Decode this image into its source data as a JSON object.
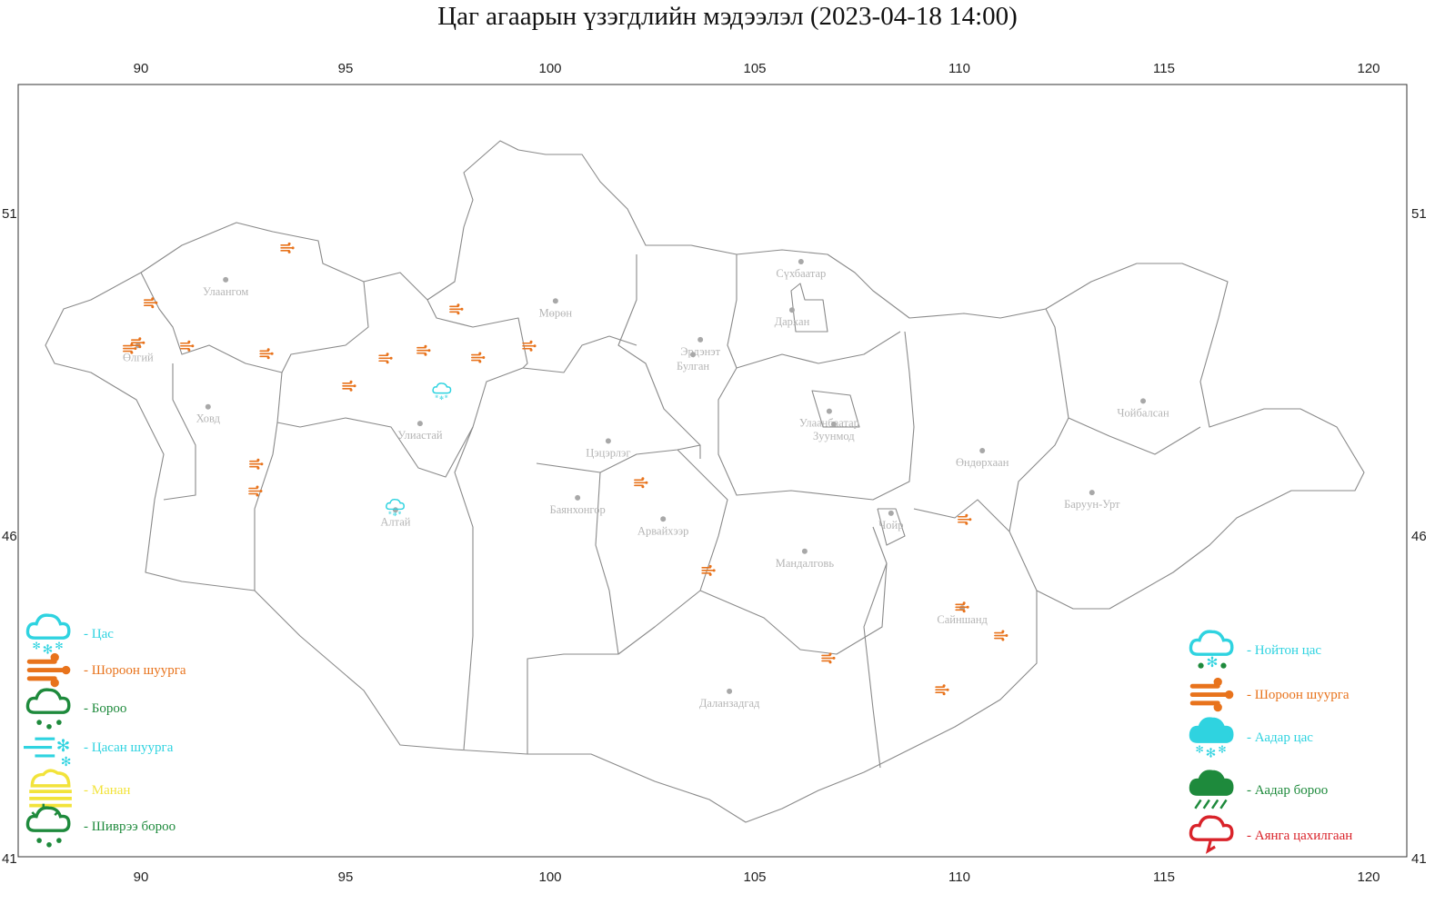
{
  "title": "Цаг агаарын үзэгдлийн мэдээлэл (2023-04-18 14:00)",
  "axes": {
    "lon_ticks": [
      90,
      95,
      100,
      105,
      110,
      115,
      120
    ],
    "lat_ticks": [
      51,
      46,
      41
    ],
    "lon_range": [
      87,
      121
    ],
    "lat_range": [
      41,
      53
    ]
  },
  "colors": {
    "dust": "#e8731c",
    "snow": "#2fd3e0",
    "rain": "#1e8a3c",
    "fog": "#f2e33a",
    "thunder": "#d9232a",
    "border": "#8a8a8a",
    "city": "#b5b5b5"
  },
  "cities": [
    {
      "name": "Улаангом",
      "lon": 92.07,
      "lat": 49.96
    },
    {
      "name": "Өлгий",
      "lon": 89.93,
      "lat": 48.94
    },
    {
      "name": "Ховд",
      "lon": 91.64,
      "lat": 47.99
    },
    {
      "name": "Улиастай",
      "lon": 96.82,
      "lat": 47.73
    },
    {
      "name": "Алтай",
      "lon": 96.22,
      "lat": 46.39
    },
    {
      "name": "Мөрөн",
      "lon": 100.13,
      "lat": 49.63
    },
    {
      "name": "Цэцэрлэг",
      "lon": 101.42,
      "lat": 47.46
    },
    {
      "name": "Баянхонгор",
      "lon": 100.67,
      "lat": 46.58
    },
    {
      "name": "Арвайхээр",
      "lon": 102.76,
      "lat": 46.25
    },
    {
      "name": "Эрдэнэт",
      "lon": 103.67,
      "lat": 49.03
    },
    {
      "name": "Булган",
      "lon": 103.49,
      "lat": 48.8
    },
    {
      "name": "Сүхбаатар",
      "lon": 106.13,
      "lat": 50.24
    },
    {
      "name": "Дархан",
      "lon": 105.91,
      "lat": 49.49
    },
    {
      "name": "Улаанбаатар",
      "lon": 106.82,
      "lat": 47.92
    },
    {
      "name": "Зуунмод",
      "lon": 106.93,
      "lat": 47.72
    },
    {
      "name": "Мандалговь",
      "lon": 106.22,
      "lat": 45.75
    },
    {
      "name": "Даланзадгад",
      "lon": 104.38,
      "lat": 43.58
    },
    {
      "name": "Чойр",
      "lon": 108.33,
      "lat": 46.34
    },
    {
      "name": "Өндөрхаан",
      "lon": 110.56,
      "lat": 47.31
    },
    {
      "name": "Сайншанд",
      "lon": 110.07,
      "lat": 44.87
    },
    {
      "name": "Баруун-Урт",
      "lon": 113.24,
      "lat": 46.66
    },
    {
      "name": "Чойбалсан",
      "lon": 114.49,
      "lat": 48.08
    }
  ],
  "observations": [
    {
      "type": "dust",
      "lon": 93.58,
      "lat": 50.46
    },
    {
      "type": "dust",
      "lon": 90.24,
      "lat": 49.61
    },
    {
      "type": "dust",
      "lon": 89.73,
      "lat": 48.9
    },
    {
      "type": "dust",
      "lon": 89.93,
      "lat": 48.99
    },
    {
      "type": "dust",
      "lon": 91.13,
      "lat": 48.94
    },
    {
      "type": "dust",
      "lon": 93.07,
      "lat": 48.82
    },
    {
      "type": "dust",
      "lon": 95.09,
      "lat": 48.32
    },
    {
      "type": "dust",
      "lon": 95.98,
      "lat": 48.75
    },
    {
      "type": "dust",
      "lon": 96.91,
      "lat": 48.87
    },
    {
      "type": "dust",
      "lon": 97.71,
      "lat": 49.51
    },
    {
      "type": "dust",
      "lon": 98.24,
      "lat": 48.76
    },
    {
      "type": "dust",
      "lon": 99.49,
      "lat": 48.94
    },
    {
      "type": "dust",
      "lon": 92.82,
      "lat": 47.11
    },
    {
      "type": "dust",
      "lon": 92.8,
      "lat": 46.69
    },
    {
      "type": "dust",
      "lon": 102.22,
      "lat": 46.82
    },
    {
      "type": "dust",
      "lon": 103.87,
      "lat": 45.46
    },
    {
      "type": "dust",
      "lon": 106.8,
      "lat": 44.1
    },
    {
      "type": "dust",
      "lon": 110.13,
      "lat": 46.25
    },
    {
      "type": "dust",
      "lon": 110.07,
      "lat": 44.89
    },
    {
      "type": "dust",
      "lon": 111.02,
      "lat": 44.45
    },
    {
      "type": "dust",
      "lon": 109.58,
      "lat": 43.61
    },
    {
      "type": "snow",
      "lon": 97.36,
      "lat": 48.24
    },
    {
      "type": "snow",
      "lon": 96.22,
      "lat": 46.44
    }
  ],
  "legend_left": [
    {
      "icon": "snow",
      "label": "- Цас",
      "color": "#2fd3e0"
    },
    {
      "icon": "dust",
      "label": "- Шороон шуурга",
      "color": "#e8731c"
    },
    {
      "icon": "rain",
      "label": "- Бороо",
      "color": "#1e8a3c"
    },
    {
      "icon": "snowstorm",
      "label": "- Цасан шуурга",
      "color": "#2fd3e0"
    },
    {
      "icon": "fog",
      "label": "- Манан",
      "color": "#f2e33a"
    },
    {
      "icon": "drizzle",
      "label": "- Шиврээ бороо",
      "color": "#1e8a3c"
    }
  ],
  "legend_right": [
    {
      "icon": "sleet",
      "label": "- Нойтон цас",
      "color": "#2fd3e0"
    },
    {
      "icon": "dust",
      "label": "- Шороон шуурга",
      "color": "#e8731c"
    },
    {
      "icon": "heavy-snow",
      "label": "- Аадар цас",
      "color": "#2fd3e0"
    },
    {
      "icon": "heavy-rain",
      "label": "- Аадар бороо",
      "color": "#1e8a3c"
    },
    {
      "icon": "thunderstorm",
      "label": "- Аянга цахилгаан",
      "color": "#d9232a"
    }
  ]
}
